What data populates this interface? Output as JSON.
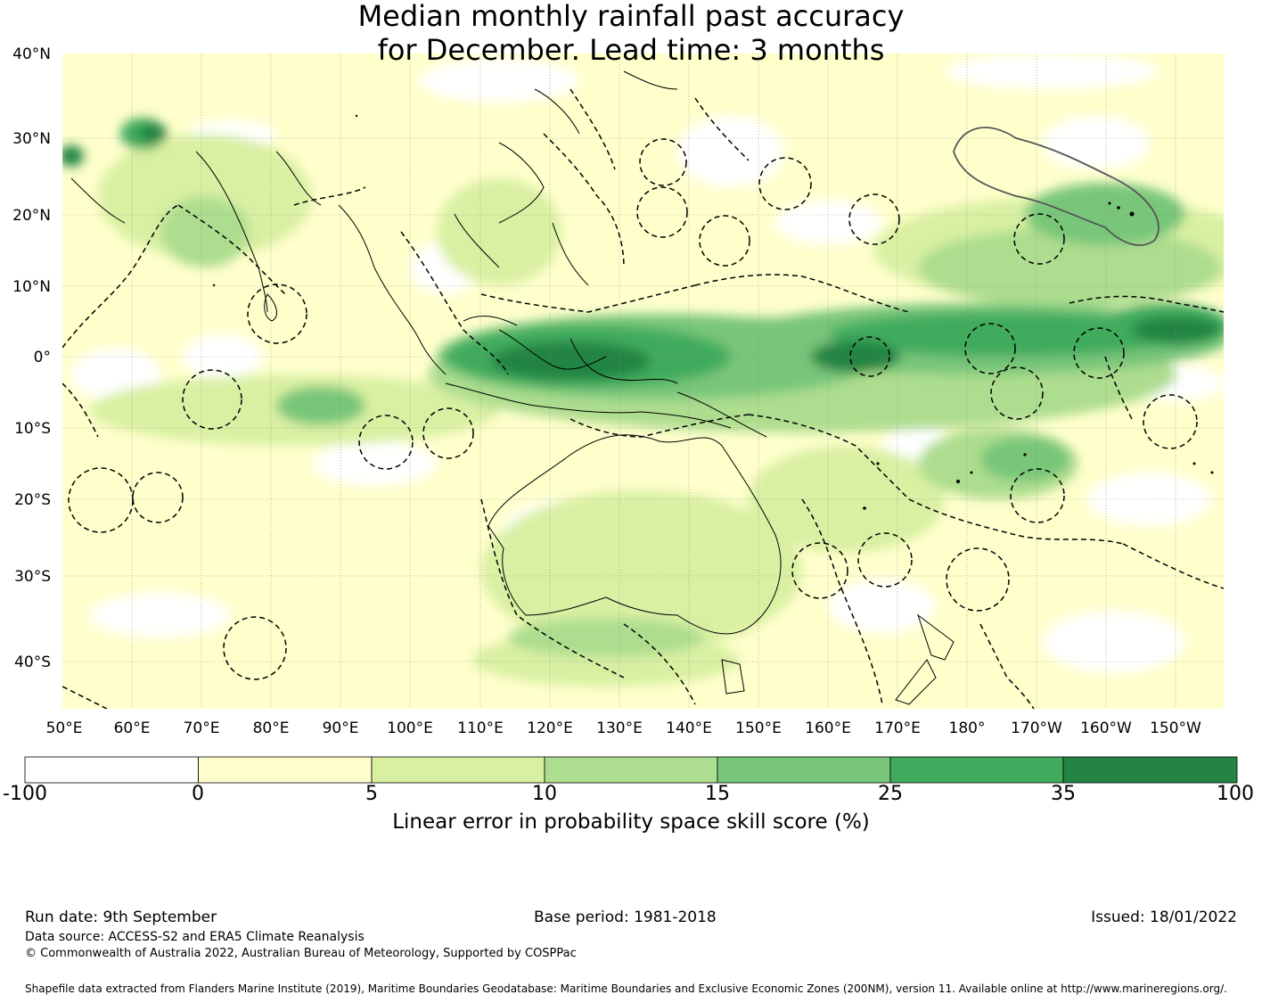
{
  "title": {
    "line1": "Median monthly rainfall past accuracy",
    "line2": "for December. Lead time: 3 months"
  },
  "map": {
    "lat_ticks": [
      "40°N",
      "30°N",
      "20°N",
      "10°N",
      "0°",
      "10°S",
      "20°S",
      "30°S",
      "40°S"
    ],
    "lon_ticks": [
      "50°E",
      "60°E",
      "70°E",
      "80°E",
      "90°E",
      "100°E",
      "110°E",
      "120°E",
      "130°E",
      "140°E",
      "150°E",
      "160°E",
      "170°E",
      "180°",
      "170°W",
      "160°W",
      "150°W"
    ]
  },
  "colorbar": {
    "ticks": [
      "-100",
      "0",
      "5",
      "10",
      "15",
      "25",
      "35",
      "100"
    ],
    "colors": [
      "#ffffff",
      "#ffffcc",
      "#d9f0a3",
      "#addd8e",
      "#78c679",
      "#41ab5d",
      "#238443"
    ],
    "label": "Linear error in probability space skill score (%)"
  },
  "footer": {
    "run_date": "Run date: 9th September",
    "base_period": "Base period: 1981-2018",
    "issued": "Issued: 18/01/2022",
    "data_source": "Data source: ACCESS-S2 and ERA5 Climate Reanalysis",
    "copyright": "© Commonwealth of Australia 2022, Australian Bureau of Meteorology, Supported by COSPPac",
    "shapefile": "Shapefile data extracted from Flanders Marine Institute (2019), Maritime Boundaries Geodatabase: Maritime Boundaries and Exclusive Economic Zones (200NM), version 11. Available online at http://www.marineregions.org/."
  }
}
